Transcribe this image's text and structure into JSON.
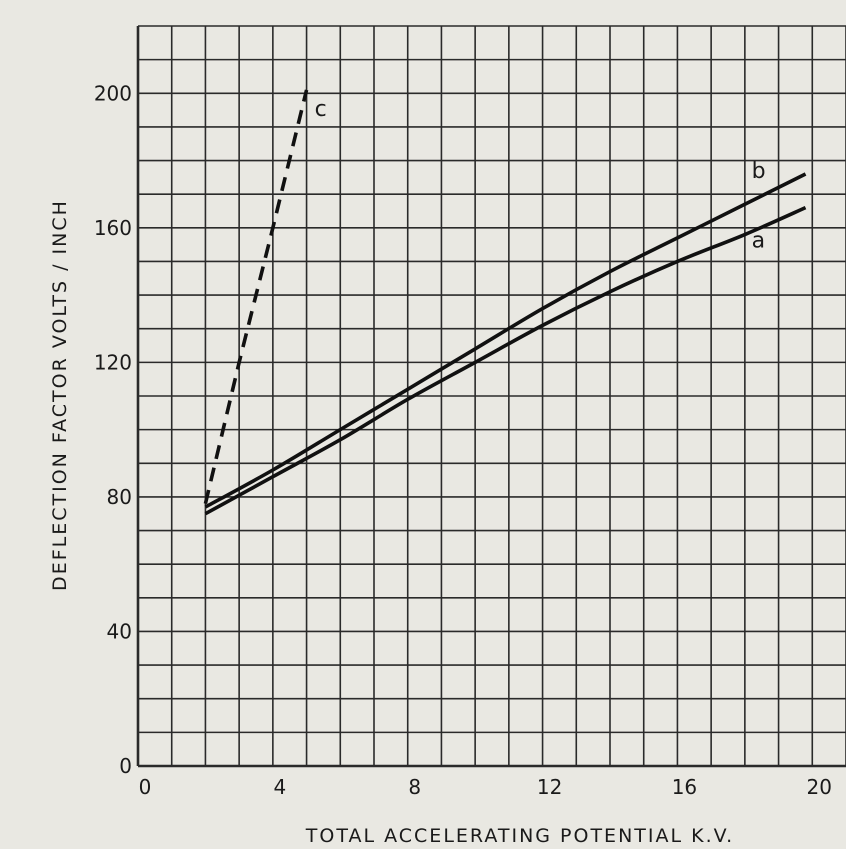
{
  "chart_data": {
    "type": "line",
    "title": "",
    "xlabel": "TOTAL ACCELERATING POTENTIAL K.V.",
    "ylabel": "DEFLECTION FACTOR VOLTS / INCH",
    "xlim": [
      0,
      21
    ],
    "ylim": [
      0,
      220
    ],
    "x_ticks": [
      0,
      4,
      8,
      12,
      16,
      20
    ],
    "y_ticks": [
      0,
      40,
      80,
      120,
      160,
      200
    ],
    "x_tick_labels": [
      "0",
      "4",
      "8",
      "12",
      "16",
      "20"
    ],
    "y_tick_labels": [
      "0",
      "40",
      "80",
      "120",
      "160",
      "200"
    ],
    "grid": true,
    "grid_step_x": 1,
    "grid_step_y": 10,
    "series": [
      {
        "name": "a",
        "style": "solid",
        "points": [
          [
            2,
            75
          ],
          [
            4,
            86
          ],
          [
            6,
            97
          ],
          [
            8,
            109
          ],
          [
            10,
            120
          ],
          [
            12,
            131
          ],
          [
            14,
            141
          ],
          [
            16,
            150
          ],
          [
            18,
            158
          ],
          [
            19.8,
            166
          ]
        ]
      },
      {
        "name": "b",
        "style": "solid",
        "points": [
          [
            2,
            77
          ],
          [
            4,
            88
          ],
          [
            6,
            100
          ],
          [
            8,
            112
          ],
          [
            10,
            124
          ],
          [
            12,
            136
          ],
          [
            14,
            147
          ],
          [
            16,
            157
          ],
          [
            18,
            167
          ],
          [
            19.8,
            176
          ]
        ]
      },
      {
        "name": "c",
        "style": "dashed",
        "points": [
          [
            2,
            78
          ],
          [
            3,
            120
          ],
          [
            4,
            160
          ],
          [
            5,
            201
          ]
        ]
      }
    ],
    "colors": {
      "line": "#111111",
      "grid": "#2a2a2a",
      "background": "#e9e8e2"
    }
  }
}
